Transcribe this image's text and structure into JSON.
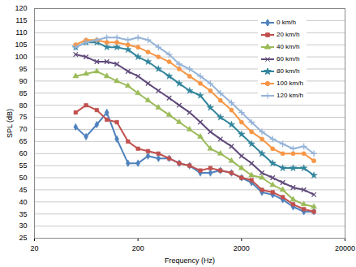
{
  "chart_data": {
    "type": "line",
    "x_label": "Frequency (Hz)",
    "y_label": "SPL (dB)",
    "log": "x",
    "grid": "y",
    "legend": "top-right",
    "xlim": [
      20,
      20000
    ],
    "xticks": [
      20,
      200,
      2000,
      20000
    ],
    "ylim": [
      25,
      120
    ],
    "yticks": [
      25,
      30,
      35,
      40,
      45,
      50,
      55,
      60,
      65,
      70,
      75,
      80,
      85,
      90,
      95,
      100,
      105,
      110,
      115,
      120
    ],
    "x": [
      50,
      63,
      80,
      100,
      125,
      160,
      200,
      250,
      315,
      400,
      500,
      630,
      800,
      1000,
      1250,
      1600,
      2000,
      2500,
      3150,
      4000,
      5000,
      6300,
      8000,
      10000
    ],
    "series": [
      {
        "name": "0 km/h",
        "color": "#4f81bd",
        "marker": "diamond",
        "values": [
          71,
          67,
          72,
          77,
          66,
          56,
          56,
          59,
          58,
          58,
          56,
          55,
          52,
          52,
          53,
          52,
          50,
          48,
          44,
          43,
          41,
          38,
          36,
          36
        ]
      },
      {
        "name": "20 km/h",
        "color": "#c0504d",
        "marker": "square",
        "values": [
          77,
          80,
          78,
          74,
          73,
          65,
          62,
          61,
          60,
          58,
          56,
          55,
          53,
          54,
          53,
          52,
          50,
          49,
          45,
          44,
          42,
          39,
          37,
          36
        ]
      },
      {
        "name": "40 km/h",
        "color": "#9bbb59",
        "marker": "triangle",
        "values": [
          92,
          93,
          94,
          92,
          90,
          88,
          85,
          82,
          79,
          76,
          73,
          70,
          67,
          62,
          60,
          57,
          54,
          51,
          50,
          47,
          45,
          41,
          39,
          38
        ]
      },
      {
        "name": "60 km/h",
        "color": "#5f497a",
        "marker": "times",
        "values": [
          101,
          100,
          98,
          98,
          97,
          94,
          92,
          89,
          86,
          83,
          80,
          77,
          73,
          69,
          66,
          63,
          59,
          56,
          52,
          50,
          48,
          46,
          45,
          43
        ]
      },
      {
        "name": "80 km/h",
        "color": "#31859c",
        "marker": "star",
        "values": [
          104,
          106,
          106,
          104,
          104,
          103,
          100,
          98,
          95,
          92,
          89,
          86,
          84,
          79,
          75,
          72,
          68,
          64,
          60,
          56,
          54,
          54,
          54,
          51
        ]
      },
      {
        "name": "100 km/h",
        "color": "#f79646",
        "marker": "circle",
        "values": [
          105,
          107,
          107,
          106,
          106,
          105,
          104,
          102,
          100,
          98,
          95,
          92,
          89,
          86,
          82,
          78,
          73,
          69,
          66,
          62,
          60,
          60,
          60,
          57
        ]
      },
      {
        "name": "120 km/h",
        "color": "#95b3d7",
        "marker": "plus",
        "values": [
          104,
          106,
          107,
          108,
          108,
          107,
          108,
          107,
          104,
          101,
          97,
          95,
          92,
          89,
          85,
          81,
          77,
          73,
          69,
          66,
          64,
          62,
          63,
          60
        ]
      }
    ]
  }
}
